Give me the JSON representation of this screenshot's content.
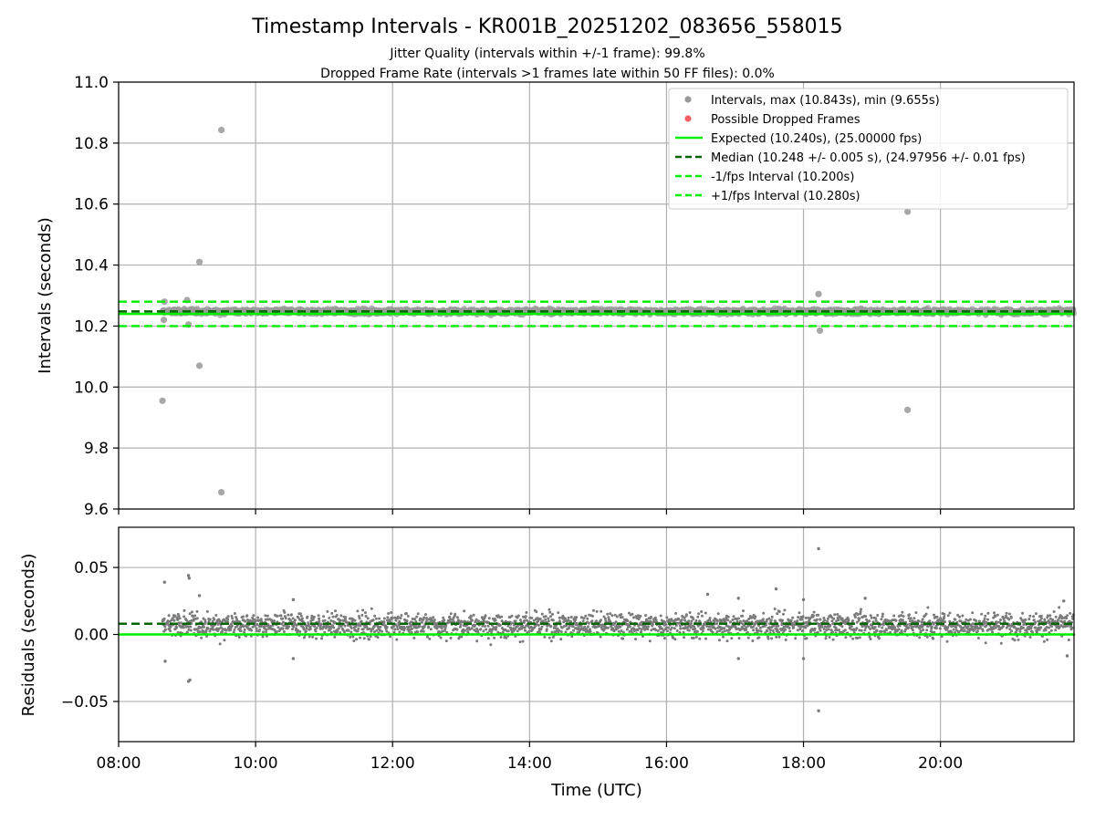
{
  "chart_data": [
    {
      "type": "scatter",
      "panel": "intervals",
      "title": "Timestamp Intervals - KR001B_20251202_083656_558015",
      "subtitle_lines": [
        "Jitter Quality (intervals within +/-1 frame): 99.8%",
        "Dropped Frame Rate (intervals >1 frames late within 50 FF files): 0.0%"
      ],
      "xlabel": "Time (UTC)",
      "ylabel": "Intervals (seconds)",
      "xlim": [
        8.0,
        21.95
      ],
      "ylim": [
        9.6,
        11.0
      ],
      "yticks": [
        9.6,
        9.8,
        10.0,
        10.2,
        10.4,
        10.6,
        10.8,
        11.0
      ],
      "ytick_labels": [
        "9.6",
        "9.8",
        "10.0",
        "10.2",
        "10.4",
        "10.6",
        "10.8",
        "11.0"
      ],
      "grid": true,
      "legend_position": "top-right",
      "legend": [
        {
          "label": "Intervals, max (10.843s), min (9.655s)",
          "marker": "dot",
          "color": "#999999"
        },
        {
          "label": "Possible Dropped Frames",
          "marker": "dot",
          "color": "#f06060"
        },
        {
          "label": "Expected (10.240s), (25.00000 fps)",
          "marker": "line",
          "color": "#00ee00",
          "dash": "solid"
        },
        {
          "label": "Median (10.248 +/- 0.005 s), (24.97956 +/- 0.01 fps)",
          "marker": "line",
          "color": "#006400",
          "dash": "dashed"
        },
        {
          "label": "-1/fps Interval (10.200s)",
          "marker": "line",
          "color": "#00ee00",
          "dash": "dashed"
        },
        {
          "label": "+1/fps Interval (10.280s)",
          "marker": "line",
          "color": "#00ee00",
          "dash": "dashed"
        }
      ],
      "expected": 10.24,
      "median": 10.248,
      "lower_interval": 10.2,
      "upper_interval": 10.28,
      "band_median": 10.248,
      "band_halfwidth": 0.012,
      "series_start_hour": 8.64,
      "series_end_hour": 21.95,
      "outliers": [
        {
          "x": 8.64,
          "y": 9.955
        },
        {
          "x": 8.66,
          "y": 10.22
        },
        {
          "x": 8.67,
          "y": 10.28
        },
        {
          "x": 9.0,
          "y": 10.285
        },
        {
          "x": 9.02,
          "y": 10.205
        },
        {
          "x": 9.18,
          "y": 10.41
        },
        {
          "x": 9.18,
          "y": 10.07
        },
        {
          "x": 9.5,
          "y": 10.843
        },
        {
          "x": 9.5,
          "y": 9.655
        },
        {
          "x": 18.22,
          "y": 10.305
        },
        {
          "x": 18.24,
          "y": 10.185
        },
        {
          "x": 19.52,
          "y": 10.575
        },
        {
          "x": 19.52,
          "y": 9.925
        }
      ],
      "dropped_frames": []
    },
    {
      "type": "scatter",
      "panel": "residuals",
      "xlabel": "Time (UTC)",
      "ylabel": "Residuals (seconds)",
      "xlim": [
        8.0,
        21.95
      ],
      "ylim": [
        -0.08,
        0.08
      ],
      "yticks": [
        -0.05,
        0.0,
        0.05
      ],
      "ytick_labels": [
        "−0.05",
        "0.00",
        "0.05"
      ],
      "xticks": [
        8,
        10,
        12,
        14,
        16,
        18,
        20
      ],
      "xtick_labels": [
        "08:00",
        "10:00",
        "12:00",
        "14:00",
        "16:00",
        "18:00",
        "20:00"
      ],
      "grid": true,
      "zero_line": 0.0,
      "median_residual": 0.008,
      "band_center": 0.007,
      "band_halfwidth": 0.012,
      "outliers": [
        {
          "x": 8.67,
          "y": 0.039
        },
        {
          "x": 8.68,
          "y": -0.02
        },
        {
          "x": 9.02,
          "y": 0.044
        },
        {
          "x": 9.03,
          "y": 0.042
        },
        {
          "x": 9.02,
          "y": -0.035
        },
        {
          "x": 9.04,
          "y": -0.034
        },
        {
          "x": 9.18,
          "y": 0.029
        },
        {
          "x": 10.55,
          "y": 0.026
        },
        {
          "x": 10.55,
          "y": -0.018
        },
        {
          "x": 16.6,
          "y": 0.03
        },
        {
          "x": 17.05,
          "y": 0.027
        },
        {
          "x": 17.05,
          "y": -0.018
        },
        {
          "x": 17.6,
          "y": 0.034
        },
        {
          "x": 18.0,
          "y": 0.026
        },
        {
          "x": 18.0,
          "y": -0.018
        },
        {
          "x": 18.22,
          "y": 0.064
        },
        {
          "x": 18.22,
          "y": -0.057
        },
        {
          "x": 18.9,
          "y": 0.027
        },
        {
          "x": 21.8,
          "y": 0.025
        },
        {
          "x": 21.85,
          "y": -0.016
        }
      ]
    }
  ],
  "colors": {
    "points": "#999999",
    "residual_points": "#7a7a7a",
    "expected": "#00ee00",
    "median": "#006400",
    "dropped": "#f06060"
  }
}
